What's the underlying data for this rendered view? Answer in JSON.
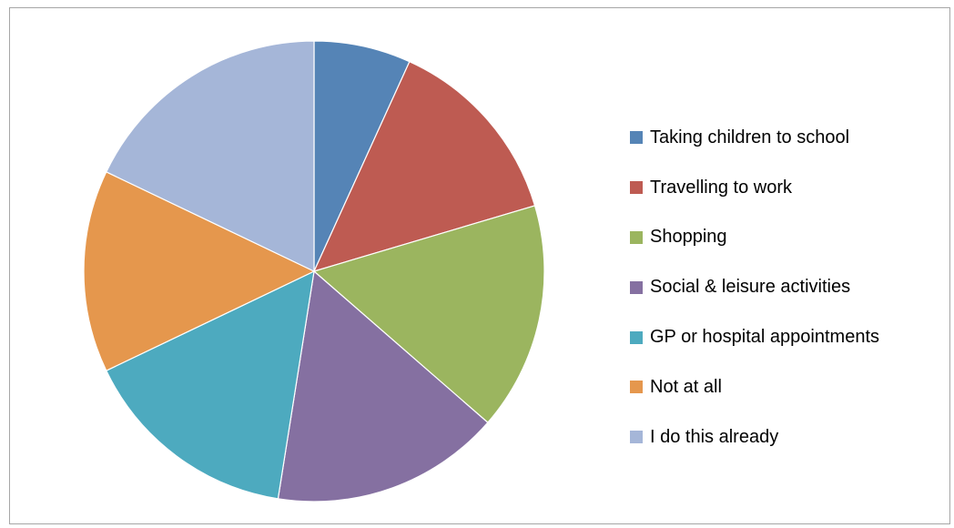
{
  "chart_data": {
    "type": "pie",
    "title": "",
    "legend_position": "right",
    "start_angle": "12 o'clock",
    "direction": "clockwise",
    "slices": [
      {
        "label": "Taking children to school",
        "value": 6.8,
        "color": "#5584B6"
      },
      {
        "label": "Travelling to work",
        "value": 13.6,
        "color": "#BE5B52"
      },
      {
        "label": "Shopping",
        "value": 16.0,
        "color": "#9BB55F"
      },
      {
        "label": "Social & leisure activities",
        "value": 16.1,
        "color": "#8570A1"
      },
      {
        "label": "GP or hospital appointments",
        "value": 15.4,
        "color": "#4DAABF"
      },
      {
        "label": "Not at all",
        "value": 14.2,
        "color": "#E5974D"
      },
      {
        "label": "I do this already",
        "value": 17.9,
        "color": "#A5B6D8"
      }
    ]
  }
}
